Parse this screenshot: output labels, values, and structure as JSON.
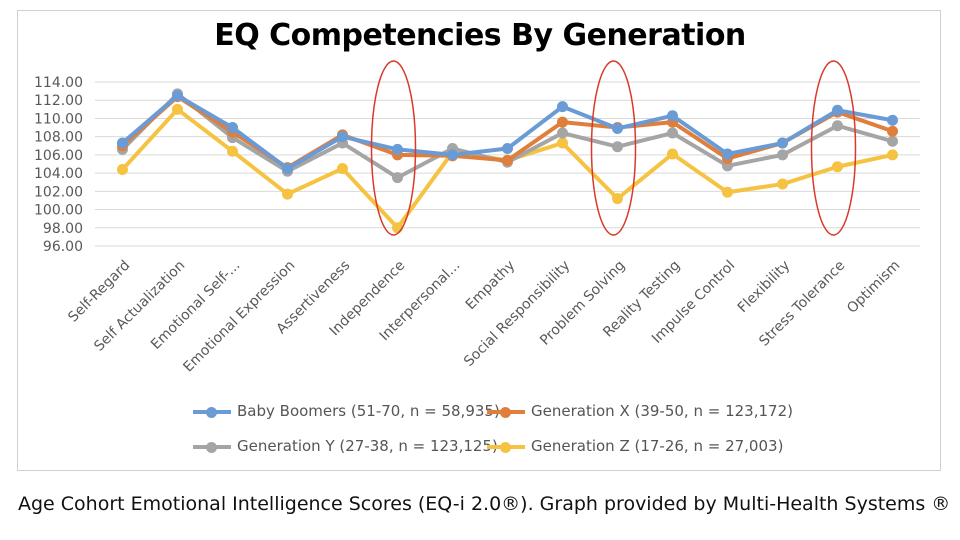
{
  "chart_data": {
    "type": "line",
    "title": "EQ Competencies By Generation",
    "categories": [
      "Self-Regard",
      "Self Actualization",
      "Emotional Self-...",
      "Emotional Expression",
      "Assertiveness",
      "Independence",
      "Interpersonal...",
      "Empathy",
      "Social Responsibility",
      "Problem Solving",
      "Reality Testing",
      "Impulse Control",
      "Flexibility",
      "Stress Tolerance",
      "Optimism"
    ],
    "ylim": [
      96,
      114
    ],
    "yticks": [
      "96.00",
      "98.00",
      "100.00",
      "102.00",
      "104.00",
      "106.00",
      "108.00",
      "110.00",
      "112.00",
      "114.00"
    ],
    "grid": true,
    "legend_position": "bottom",
    "series": [
      {
        "name": "Baby Boomers (51-70, n = 58,935)",
        "color": "#6a9bd5",
        "values": [
          107.3,
          112.5,
          109.0,
          104.5,
          108.0,
          106.6,
          106.0,
          106.7,
          111.3,
          108.9,
          110.3,
          106.1,
          107.3,
          110.9,
          109.8
        ]
      },
      {
        "name": "Generation X (39-50, n = 123,172)",
        "color": "#e07e3c",
        "values": [
          107.0,
          112.4,
          108.5,
          104.6,
          108.2,
          106.0,
          105.9,
          105.4,
          109.6,
          109.0,
          109.6,
          105.6,
          107.3,
          110.7,
          108.6
        ]
      },
      {
        "name": "Generation Y (27-38, n = 123,125)",
        "color": "#a5a5a5",
        "values": [
          106.6,
          112.7,
          107.9,
          104.2,
          107.3,
          103.5,
          106.7,
          105.2,
          108.4,
          106.9,
          108.4,
          104.8,
          106.0,
          109.2,
          107.5
        ]
      },
      {
        "name": "Generation Z (17-26, n = 27,003)",
        "color": "#f5c242",
        "values": [
          104.4,
          111.0,
          106.4,
          101.7,
          104.5,
          98.0,
          106.3,
          105.4,
          107.3,
          101.2,
          106.1,
          101.9,
          102.8,
          104.7,
          106.0
        ]
      }
    ],
    "annotations": [
      "Independence",
      "Problem Solving",
      "Stress Tolerance"
    ],
    "annotation_color": "#d93a2b"
  },
  "caption": "Age Cohort Emotional Intelligence Scores (EQ-i 2.0®). Graph provided by Multi-Health Systems ®"
}
